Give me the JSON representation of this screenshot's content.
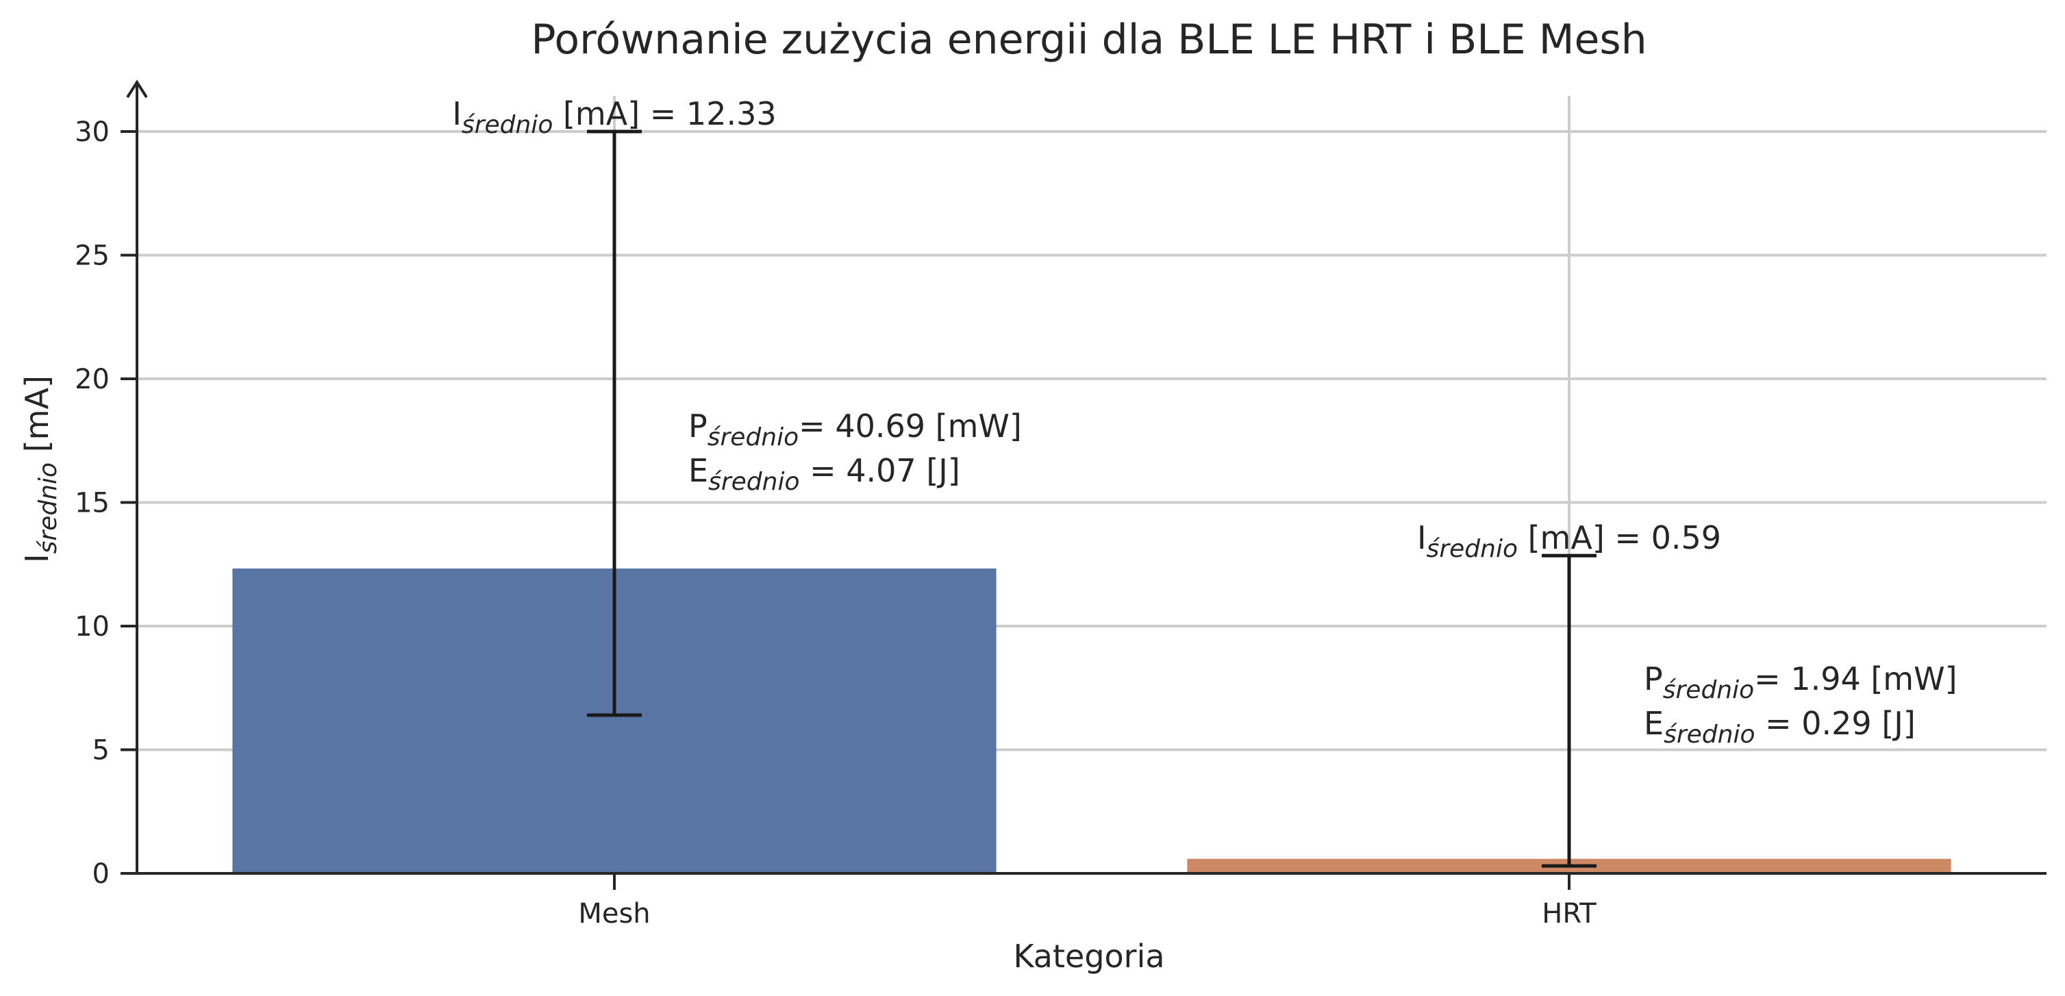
{
  "chart_data": {
    "type": "bar",
    "title": "Porównanie zużycia energii dla BLE LE HRT i BLE Mesh",
    "xlabel": "Kategoria",
    "ylabel": {
      "main": "I",
      "sub": "średnio",
      "unit": " [mA]"
    },
    "categories": [
      "Mesh",
      "HRT"
    ],
    "values": [
      12.33,
      0.59
    ],
    "error_bars": [
      {
        "low": 6.4,
        "high": 30.0
      },
      {
        "low": 0.3,
        "high": 12.85
      }
    ],
    "colors": [
      "#5975a4",
      "#cc8963"
    ],
    "ylim": [
      0,
      32
    ],
    "yticks": [
      0,
      5,
      10,
      15,
      20,
      25,
      30
    ],
    "grid": true,
    "annotations": [
      {
        "current": {
          "main": "I",
          "sub": "średnio",
          "rest": " [mA] = 12.33"
        },
        "power": {
          "main": "P",
          "sub": "średnio",
          "rest": "= 40.69 [mW]"
        },
        "energy": {
          "main": "E",
          "sub": "średnio",
          "rest": " = 4.07 [J]"
        }
      },
      {
        "current": {
          "main": "I",
          "sub": "średnio",
          "rest": " [mA] = 0.59"
        },
        "power": {
          "main": "P",
          "sub": "średnio",
          "rest": "= 1.94 [mW]"
        },
        "energy": {
          "main": "E",
          "sub": "średnio",
          "rest": " = 0.29 [J]"
        }
      }
    ]
  }
}
